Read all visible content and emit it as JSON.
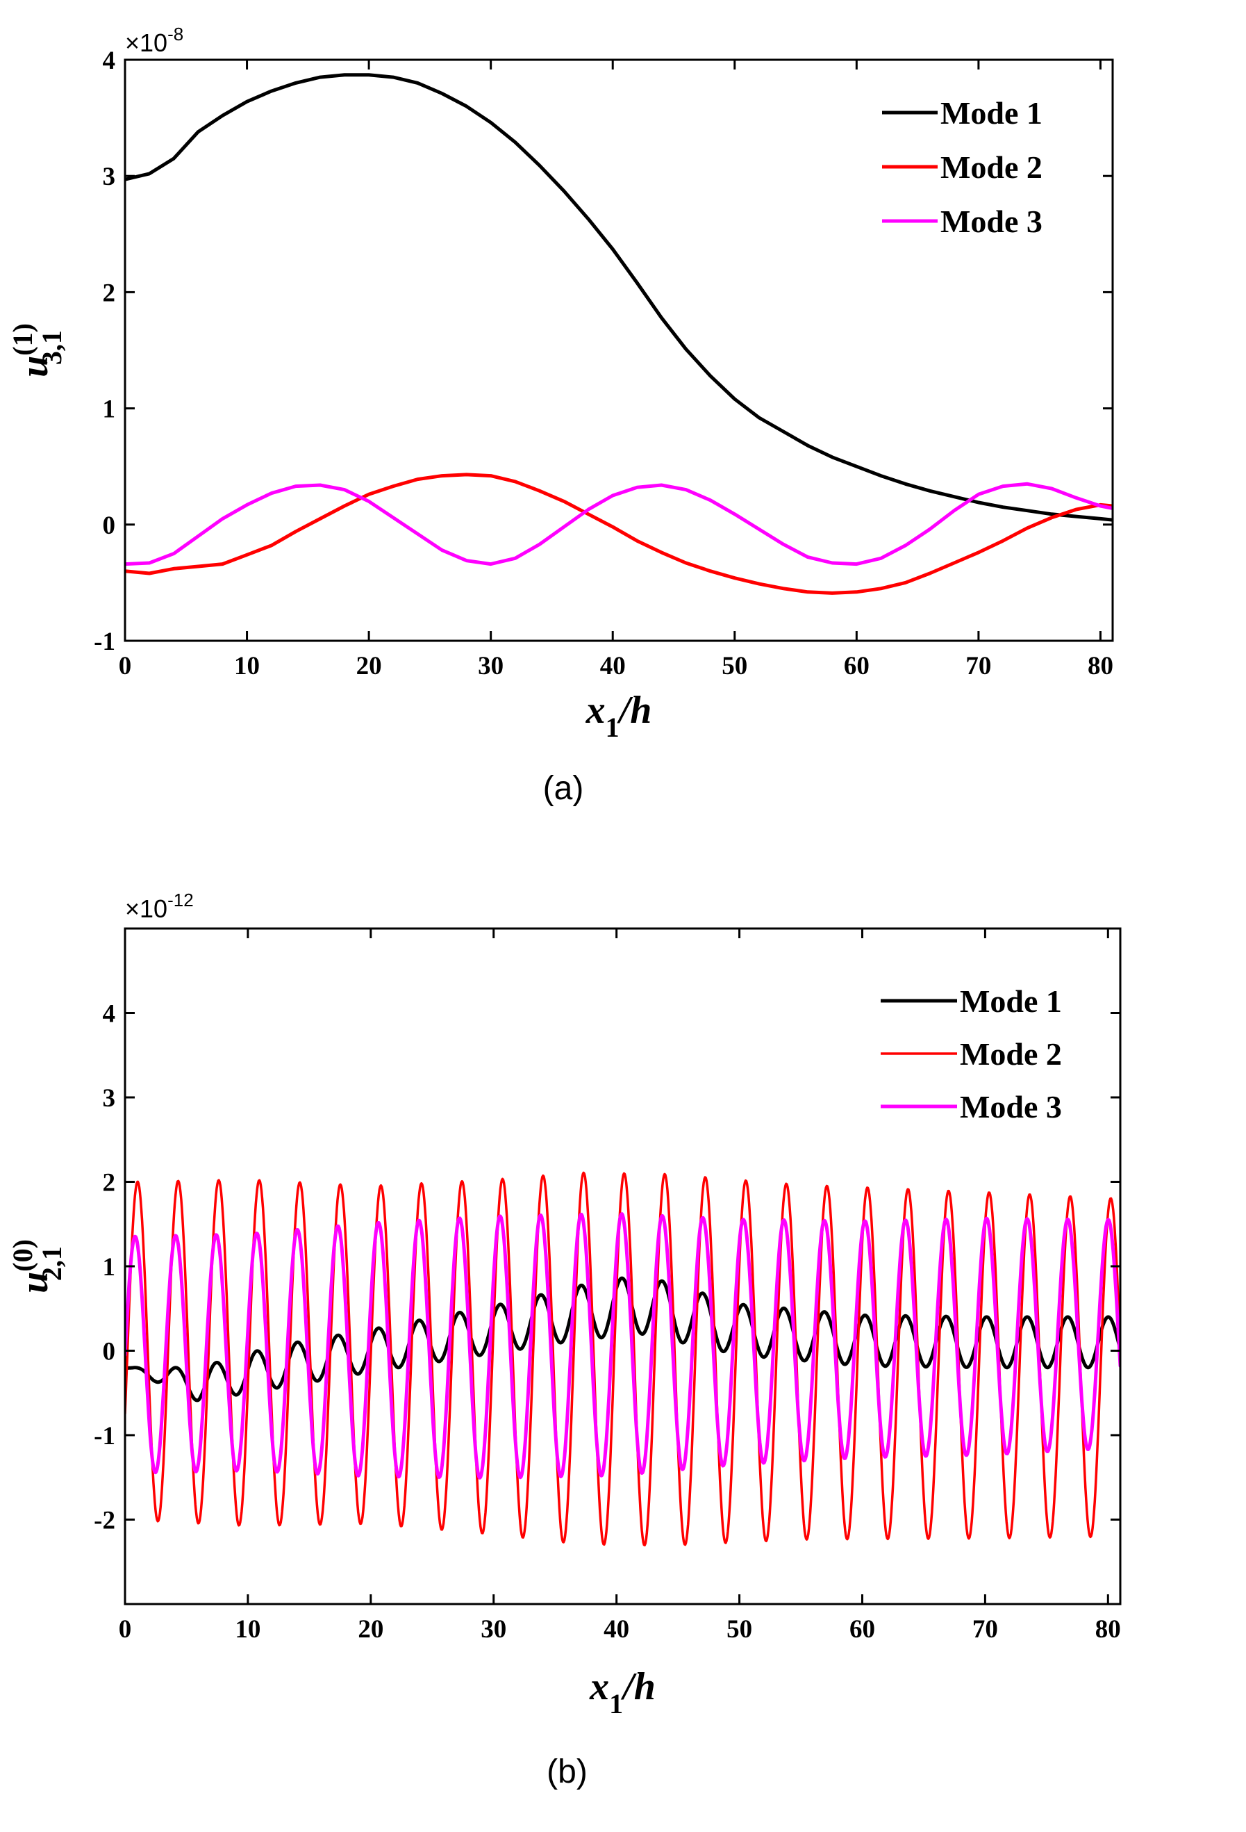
{
  "chart_data": [
    {
      "type": "line",
      "id": "a",
      "caption": "(a)",
      "xlabel_main": "x",
      "xlabel_sub": "1",
      "xlabel_tail": "/h",
      "ylabel_main": "u",
      "ylabel_sup": "(1)",
      "ylabel_sub": "3,1",
      "exponent_prefix": "×10",
      "exponent_power": "-8",
      "xlim": [
        0,
        81
      ],
      "ylim": [
        -1,
        4
      ],
      "xticks": [
        0,
        10,
        20,
        30,
        40,
        50,
        60,
        70,
        80
      ],
      "yticks": [
        -1,
        0,
        1,
        2,
        3,
        4
      ],
      "legend_position": "top-right",
      "series": [
        {
          "name": "Mode 1",
          "color": "#000000",
          "x": [
            0,
            2,
            4,
            6,
            8,
            10,
            12,
            14,
            16,
            18,
            20,
            22,
            24,
            26,
            28,
            30,
            32,
            34,
            36,
            38,
            40,
            42,
            44,
            46,
            48,
            50,
            52,
            54,
            56,
            58,
            60,
            62,
            64,
            66,
            68,
            70,
            72,
            74,
            76,
            78,
            80,
            81
          ],
          "y": [
            2.97,
            3.02,
            3.15,
            3.38,
            3.52,
            3.64,
            3.73,
            3.8,
            3.85,
            3.87,
            3.87,
            3.85,
            3.8,
            3.71,
            3.6,
            3.46,
            3.29,
            3.09,
            2.87,
            2.63,
            2.37,
            2.08,
            1.78,
            1.51,
            1.28,
            1.08,
            0.92,
            0.8,
            0.68,
            0.58,
            0.5,
            0.42,
            0.35,
            0.29,
            0.24,
            0.19,
            0.15,
            0.12,
            0.09,
            0.07,
            0.05,
            0.04
          ]
        },
        {
          "name": "Mode 2",
          "color": "#ff0000",
          "x": [
            0,
            2,
            4,
            6,
            8,
            10,
            12,
            14,
            16,
            18,
            20,
            22,
            24,
            26,
            28,
            30,
            32,
            34,
            36,
            38,
            40,
            42,
            44,
            46,
            48,
            50,
            52,
            54,
            56,
            58,
            60,
            62,
            64,
            66,
            68,
            70,
            72,
            74,
            76,
            78,
            80,
            81
          ],
          "y": [
            -0.4,
            -0.42,
            -0.38,
            -0.36,
            -0.34,
            -0.26,
            -0.18,
            -0.06,
            0.05,
            0.16,
            0.26,
            0.33,
            0.39,
            0.42,
            0.43,
            0.42,
            0.37,
            0.29,
            0.2,
            0.09,
            -0.02,
            -0.14,
            -0.24,
            -0.33,
            -0.4,
            -0.46,
            -0.51,
            -0.55,
            -0.58,
            -0.59,
            -0.58,
            -0.55,
            -0.5,
            -0.42,
            -0.33,
            -0.24,
            -0.14,
            -0.03,
            0.06,
            0.13,
            0.17,
            0.16
          ]
        },
        {
          "name": "Mode 3",
          "color": "#ff00ff",
          "x": [
            0,
            2,
            4,
            6,
            8,
            10,
            12,
            14,
            16,
            18,
            20,
            22,
            24,
            26,
            28,
            30,
            32,
            34,
            36,
            38,
            40,
            42,
            44,
            46,
            48,
            50,
            52,
            54,
            56,
            58,
            60,
            62,
            64,
            66,
            68,
            70,
            72,
            74,
            76,
            78,
            80,
            81
          ],
          "y": [
            -0.34,
            -0.33,
            -0.25,
            -0.1,
            0.05,
            0.17,
            0.27,
            0.33,
            0.34,
            0.3,
            0.2,
            0.06,
            -0.08,
            -0.22,
            -0.31,
            -0.34,
            -0.29,
            -0.17,
            -0.02,
            0.13,
            0.25,
            0.32,
            0.34,
            0.3,
            0.21,
            0.09,
            -0.04,
            -0.17,
            -0.28,
            -0.33,
            -0.34,
            -0.29,
            -0.18,
            -0.04,
            0.12,
            0.26,
            0.33,
            0.35,
            0.31,
            0.23,
            0.16,
            0.14
          ]
        }
      ]
    },
    {
      "type": "line",
      "id": "b",
      "caption": "(b)",
      "xlabel_main": "x",
      "xlabel_sub": "1",
      "xlabel_tail": "/h",
      "ylabel_main": "u",
      "ylabel_sup": "(0)",
      "ylabel_sub": "2,1",
      "exponent_prefix": "×10",
      "exponent_power": "-12",
      "xlim": [
        0,
        81
      ],
      "ylim": [
        -3,
        5
      ],
      "xticks": [
        0,
        10,
        20,
        30,
        40,
        50,
        60,
        70,
        80
      ],
      "yticks": [
        -2,
        -1,
        0,
        1,
        2,
        3,
        4
      ],
      "legend_position": "top-right",
      "series": [
        {
          "name": "Mode 1",
          "color": "#000000",
          "model": "oscillation",
          "period": 3.3,
          "phase_x": 0.0,
          "center_x": [
            0,
            6,
            12,
            20,
            30,
            37,
            42,
            50,
            60,
            70,
            81
          ],
          "center_y": [
            -0.2,
            -0.4,
            -0.2,
            0.0,
            0.25,
            0.45,
            0.55,
            0.25,
            0.12,
            0.1,
            0.1
          ],
          "amp_x": [
            0,
            6,
            12,
            20,
            30,
            42,
            50,
            60,
            70,
            81
          ],
          "amp_y": [
            0.0,
            0.2,
            0.25,
            0.25,
            0.28,
            0.35,
            0.3,
            0.3,
            0.3,
            0.3
          ]
        },
        {
          "name": "Mode 2",
          "color": "#ff0000",
          "model": "oscillation",
          "period": 3.3,
          "phase_x": 0.2,
          "center_x": [
            0,
            81
          ],
          "center_y": [
            0.0,
            -0.2
          ],
          "amp_x": [
            0,
            10,
            20,
            30,
            37,
            44,
            55,
            70,
            81
          ],
          "amp_y": [
            2.0,
            2.05,
            2.0,
            2.1,
            2.2,
            2.2,
            2.1,
            2.05,
            2.0
          ]
        },
        {
          "name": "Mode 3",
          "color": "#ff00ff",
          "model": "oscillation",
          "period": 3.3,
          "phase_x": 0.0,
          "center_x": [
            0,
            81
          ],
          "center_y": [
            -0.05,
            0.2
          ],
          "amp_x": [
            0,
            10,
            20,
            30,
            40,
            50,
            60,
            70,
            81
          ],
          "amp_y": [
            1.4,
            1.4,
            1.5,
            1.55,
            1.55,
            1.45,
            1.4,
            1.4,
            1.35
          ]
        }
      ]
    }
  ]
}
